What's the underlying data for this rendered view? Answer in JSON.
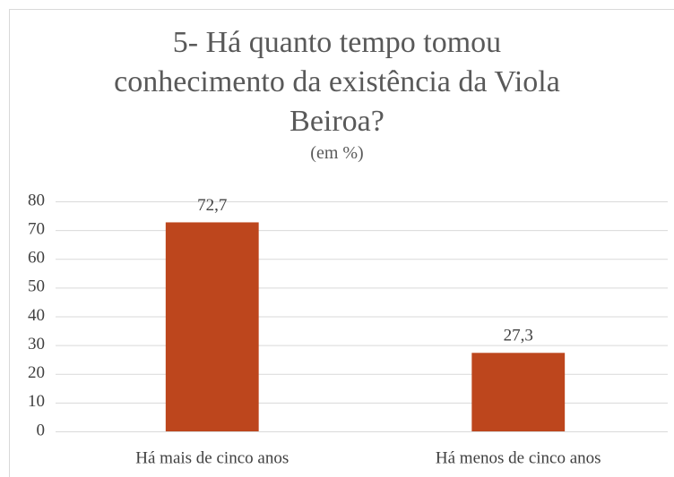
{
  "chart_data": {
    "type": "bar",
    "title": "5- Há quanto tempo tomou conhecimento da existência da Viola Beiroa?",
    "subtitle": "(em %)",
    "categories": [
      "Há mais de cinco anos",
      "Há menos de cinco anos"
    ],
    "values": [
      72.7,
      27.3
    ],
    "value_labels": [
      "72,7",
      "27,3"
    ],
    "color": "#bd461d",
    "ylim": [
      0,
      80
    ],
    "yticks": [
      0,
      10,
      20,
      30,
      40,
      50,
      60,
      70,
      80
    ],
    "grid": true
  }
}
